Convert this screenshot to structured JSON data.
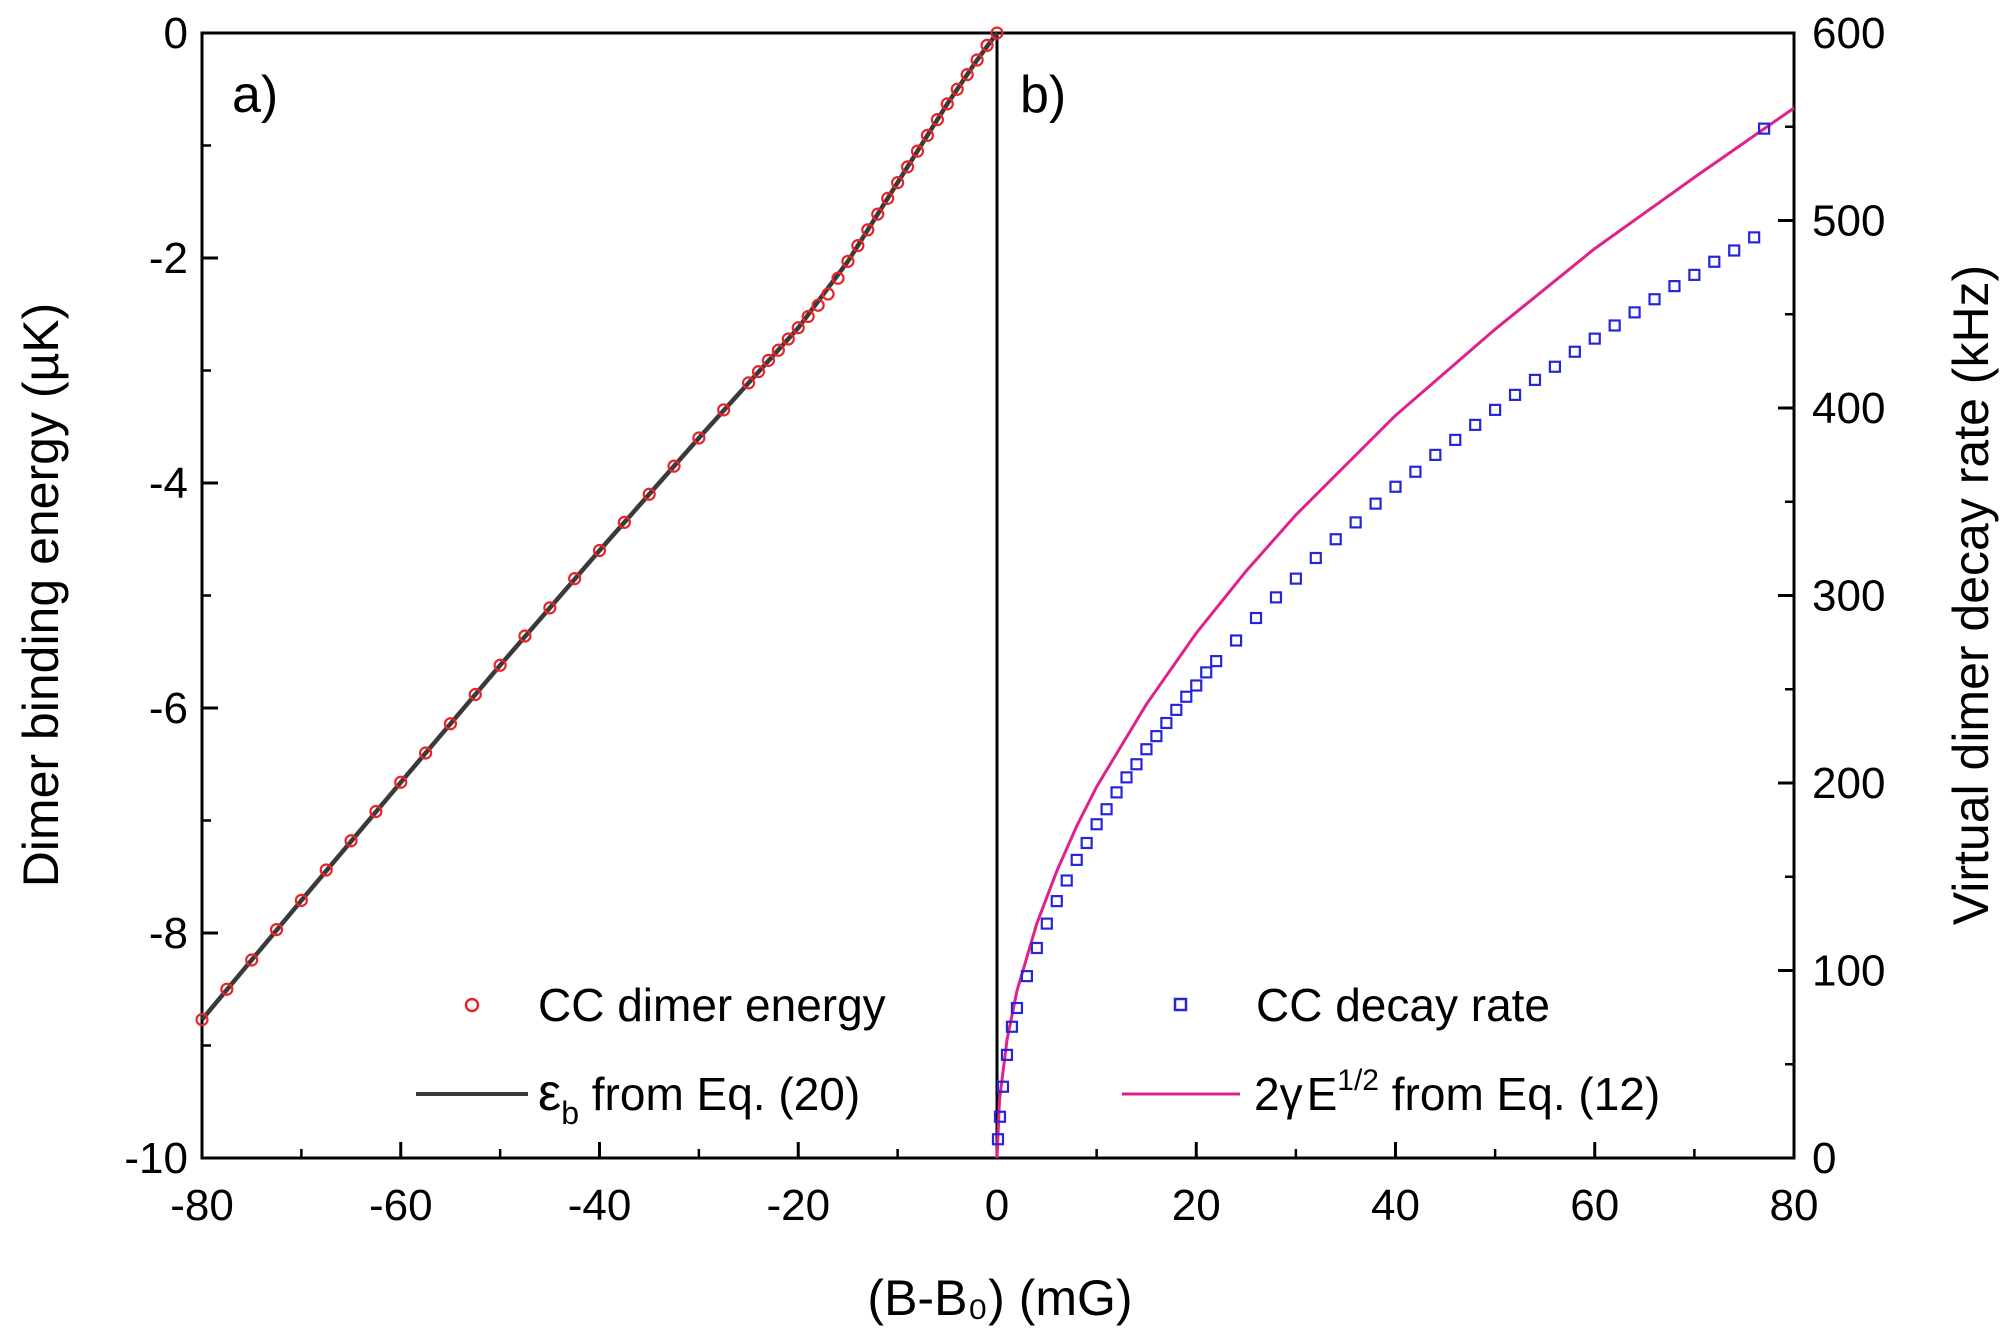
{
  "colors": {
    "frame": "#000000",
    "cc_energy_points": "#e8242a",
    "eb_line": "#3a3a3a",
    "cc_decay_points": "#2626d9",
    "fit_line": "#e0218a"
  },
  "chart_data": [
    {
      "type": "scatter",
      "panel_label": "a)",
      "xlabel": "(B-B₀) (mG)",
      "ylabel": "Dimer binding energy (µK)",
      "xlim": [
        -80,
        0
      ],
      "ylim": [
        -10,
        0
      ],
      "x_ticks": [
        -80,
        -60,
        -40,
        -20,
        0
      ],
      "x_tick_labels": [
        "-80",
        "-60",
        "-40",
        "-20",
        "0"
      ],
      "y_ticks": [
        -10,
        -8,
        -6,
        -4,
        -2,
        0
      ],
      "y_tick_labels": [
        "-10",
        "-8",
        "-6",
        "-4",
        "-2",
        "0"
      ],
      "legend_position": "bottom-right",
      "series": [
        {
          "name": "CC dimer energy",
          "marker": "open-circle",
          "color": "#e8242a",
          "x": [
            -80,
            -77.5,
            -75,
            -72.5,
            -70,
            -67.5,
            -65,
            -62.5,
            -60,
            -57.5,
            -55,
            -52.5,
            -50,
            -47.5,
            -45,
            -42.5,
            -40,
            -37.5,
            -35,
            -32.5,
            -30,
            -27.5,
            -25,
            -24,
            -23,
            -22,
            -21,
            -20,
            -19,
            -18,
            -17,
            -16,
            -15,
            -14,
            -13,
            -12,
            -11,
            -10,
            -9,
            -8,
            -7,
            -6,
            -5,
            -4,
            -3,
            -2,
            -1,
            0
          ],
          "y": [
            -8.77,
            -8.5,
            -8.24,
            -7.97,
            -7.71,
            -7.44,
            -7.18,
            -6.92,
            -6.66,
            -6.4,
            -6.14,
            -5.88,
            -5.62,
            -5.36,
            -5.11,
            -4.85,
            -4.6,
            -4.35,
            -4.1,
            -3.85,
            -3.6,
            -3.35,
            -3.11,
            -3.01,
            -2.91,
            -2.82,
            -2.72,
            -2.62,
            -2.52,
            -2.42,
            -2.32,
            -2.18,
            -2.03,
            -1.89,
            -1.75,
            -1.61,
            -1.47,
            -1.33,
            -1.19,
            -1.05,
            -0.91,
            -0.77,
            -0.63,
            -0.5,
            -0.37,
            -0.24,
            -0.11,
            0
          ]
        },
        {
          "name": "εb from Eq. (20)",
          "line": "solid",
          "color": "#3a3a3a",
          "x": [
            -80,
            -70,
            -60,
            -50,
            -40,
            -30,
            -25,
            -20,
            -15,
            -10,
            -5,
            -2,
            0
          ],
          "y": [
            -8.77,
            -7.71,
            -6.66,
            -5.62,
            -4.6,
            -3.6,
            -3.11,
            -2.62,
            -2.03,
            -1.33,
            -0.63,
            -0.24,
            0
          ]
        }
      ],
      "legend": {
        "item1_label": "CC dimer energy",
        "item2_symbol": "ε",
        "item2_subscript": "b",
        "item2_rest": " from Eq. (20)"
      }
    },
    {
      "type": "scatter",
      "panel_label": "b)",
      "xlabel": "(B-B₀) (mG)",
      "ylabel": "Virtual dimer decay rate (kHz)",
      "xlim": [
        0,
        80
      ],
      "ylim": [
        0,
        600
      ],
      "x_ticks": [
        0,
        20,
        40,
        60,
        80
      ],
      "x_tick_labels": [
        "0",
        "20",
        "40",
        "60",
        "80"
      ],
      "y_ticks": [
        0,
        100,
        200,
        300,
        400,
        500,
        600
      ],
      "y_tick_labels": [
        "0",
        "100",
        "200",
        "300",
        "400",
        "500",
        "600"
      ],
      "legend_position": "bottom-right",
      "series": [
        {
          "name": "CC decay rate",
          "marker": "open-square",
          "color": "#2626d9",
          "x": [
            0.1,
            0.3,
            0.6,
            1,
            1.5,
            2,
            3,
            4,
            5,
            6,
            7,
            8,
            9,
            10,
            11,
            12,
            13,
            14,
            15,
            16,
            17,
            18,
            19,
            20,
            21,
            22,
            24,
            26,
            28,
            30,
            32,
            34,
            36,
            38,
            40,
            42,
            44,
            46,
            48,
            50,
            52,
            54,
            56,
            58,
            60,
            62,
            64,
            66,
            68,
            70,
            72,
            74,
            76,
            77
          ],
          "y": [
            10,
            22,
            38,
            55,
            70,
            80,
            97,
            112,
            125,
            137,
            148,
            159,
            168,
            178,
            186,
            195,
            203,
            210,
            218,
            225,
            232,
            239,
            246,
            252,
            259,
            265,
            276,
            288,
            299,
            309,
            320,
            330,
            339,
            349,
            358,
            366,
            375,
            383,
            391,
            399,
            407,
            415,
            422,
            430,
            437,
            444,
            451,
            458,
            465,
            471,
            478,
            484,
            491,
            549
          ]
        },
        {
          "name": "2γE^1/2 from Eq. (12)",
          "line": "solid",
          "color": "#e0218a",
          "x": [
            0,
            0.25,
            1,
            2,
            4,
            6,
            8,
            10,
            15,
            20,
            25,
            30,
            40,
            50,
            60,
            70,
            80
          ],
          "y": [
            0,
            31,
            63,
            89,
            125,
            153,
            177,
            198,
            242,
            280,
            313,
            343,
            396,
            442,
            485,
            523,
            560
          ]
        }
      ],
      "legend": {
        "item1_label": "CC decay rate",
        "item2_prefix": "2γ",
        "item2_base": "E",
        "item2_superscript": "1/2",
        "item2_rest": " from Eq. (12)"
      }
    }
  ]
}
